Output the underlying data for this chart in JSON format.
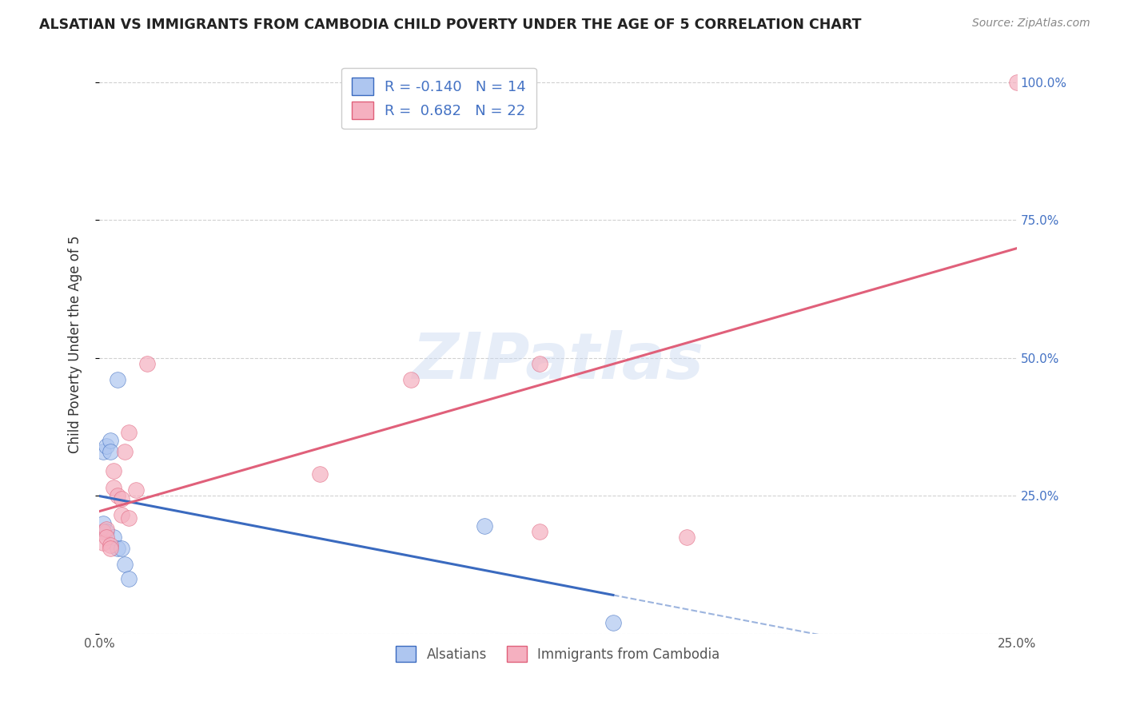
{
  "title": "ALSATIAN VS IMMIGRANTS FROM CAMBODIA CHILD POVERTY UNDER THE AGE OF 5 CORRELATION CHART",
  "source": "Source: ZipAtlas.com",
  "ylabel": "Child Poverty Under the Age of 5",
  "xlim": [
    0.0,
    0.25
  ],
  "ylim": [
    0.0,
    1.05
  ],
  "yticks": [
    0.0,
    0.25,
    0.5,
    0.75,
    1.0
  ],
  "xticks": [
    0.0,
    0.05,
    0.1,
    0.15,
    0.2,
    0.25
  ],
  "alsatian_R": -0.14,
  "alsatian_N": 14,
  "cambodia_R": 0.682,
  "cambodia_N": 22,
  "alsatian_color": "#aec6f0",
  "cambodia_color": "#f5b0c0",
  "alsatian_line_color": "#3a6abf",
  "cambodia_line_color": "#e0607a",
  "watermark": "ZIPatlas",
  "alsatian_x": [
    0.001,
    0.001,
    0.002,
    0.002,
    0.003,
    0.003,
    0.004,
    0.005,
    0.005,
    0.006,
    0.007,
    0.008,
    0.105,
    0.14
  ],
  "alsatian_y": [
    0.2,
    0.33,
    0.34,
    0.185,
    0.35,
    0.33,
    0.175,
    0.46,
    0.155,
    0.155,
    0.125,
    0.1,
    0.195,
    0.02
  ],
  "cambodia_x": [
    0.001,
    0.001,
    0.002,
    0.002,
    0.003,
    0.003,
    0.004,
    0.004,
    0.005,
    0.006,
    0.006,
    0.007,
    0.008,
    0.008,
    0.01,
    0.013,
    0.06,
    0.085,
    0.12,
    0.16,
    0.12,
    0.25
  ],
  "cambodia_y": [
    0.185,
    0.165,
    0.19,
    0.175,
    0.16,
    0.155,
    0.295,
    0.265,
    0.25,
    0.245,
    0.215,
    0.33,
    0.365,
    0.21,
    0.26,
    0.49,
    0.29,
    0.46,
    0.185,
    0.175,
    0.49,
    1.0
  ],
  "background_color": "#ffffff",
  "grid_color": "#cccccc",
  "tick_color": "#4472c4",
  "axis_color": "#cccccc"
}
